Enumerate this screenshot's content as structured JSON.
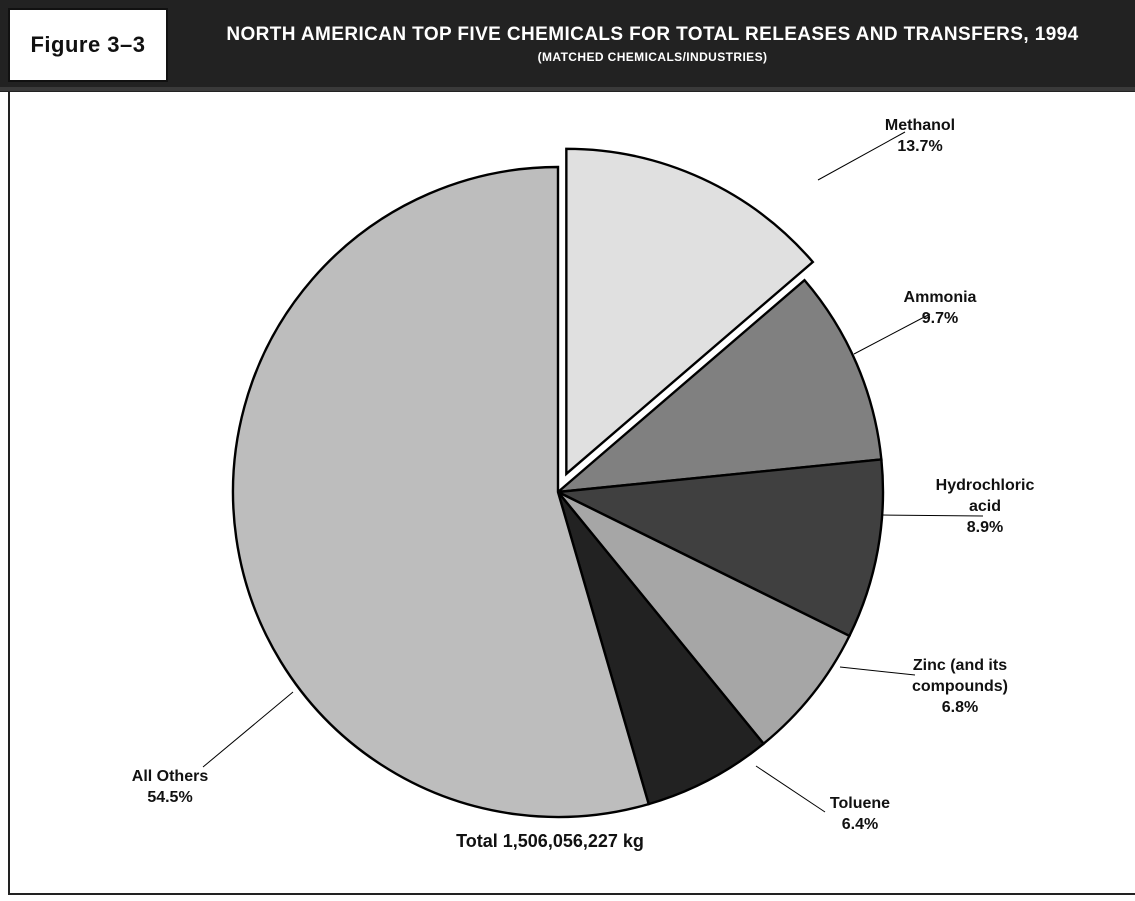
{
  "figure": {
    "tag": "Figure 3–3",
    "title": "NORTH AMERICAN TOP FIVE CHEMICALS FOR TOTAL RELEASES AND TRANSFERS, 1994",
    "subtitle": "(MATCHED CHEMICALS/INDUSTRIES)"
  },
  "chart_data": {
    "type": "pie",
    "total_label": "Total 1,506,056,227 kg",
    "start": "12 o'clock",
    "direction": "clockwise",
    "exploded": "Methanol",
    "slices": [
      {
        "name": "Methanol",
        "value": 13.7,
        "label_lines": [
          "Methanol",
          "13.7%"
        ],
        "color": "#e0e0e0"
      },
      {
        "name": "Ammonia",
        "value": 9.7,
        "label_lines": [
          "Ammonia",
          "9.7%"
        ],
        "color": "#808080"
      },
      {
        "name": "Hydrochloric acid",
        "value": 8.9,
        "label_lines": [
          "Hydrochloric",
          "acid",
          "8.9%"
        ],
        "color": "#404040"
      },
      {
        "name": "Zinc (and its compounds)",
        "value": 6.8,
        "label_lines": [
          "Zinc (and its",
          "compounds)",
          "6.8%"
        ],
        "color": "#a6a6a6"
      },
      {
        "name": "Toluene",
        "value": 6.4,
        "label_lines": [
          "Toluene",
          "6.4%"
        ],
        "color": "#222222"
      },
      {
        "name": "All Others",
        "value": 54.5,
        "label_lines": [
          "All Others",
          "54.5%"
        ],
        "color": "#bdbdbd"
      }
    ]
  }
}
